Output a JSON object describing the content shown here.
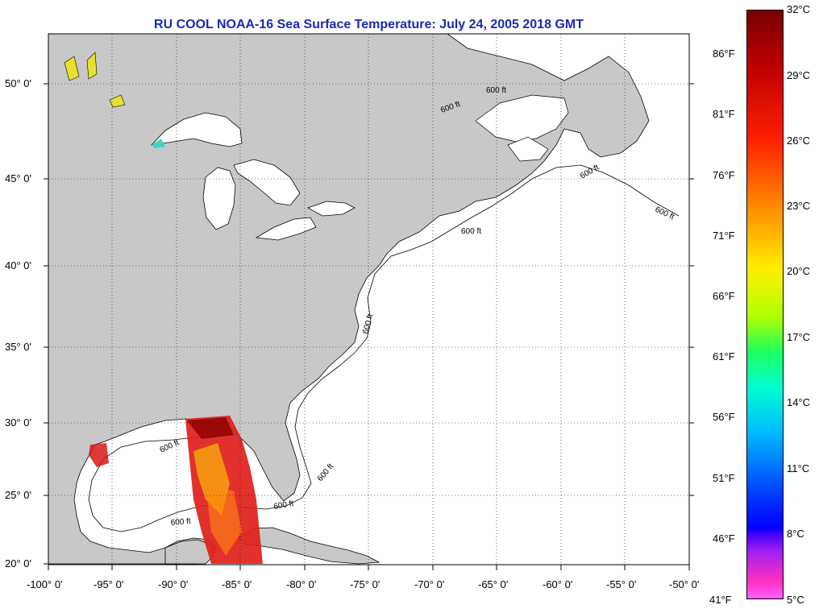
{
  "title": "RU COOL  NOAA-16  Sea Surface Temperature:  July 24, 2005 2018 GMT",
  "map": {
    "lat_labels": [
      "50° 0'",
      "45° 0'",
      "40° 0'",
      "35° 0'",
      "30° 0'",
      "25° 0'",
      "20° 0'"
    ],
    "lon_labels": [
      "-100° 0'",
      "-95° 0'",
      "-90° 0'",
      "-85° 0'",
      "-80° 0'",
      "-75° 0'",
      "-70° 0'",
      "-65° 0'",
      "-60° 0'",
      "-55° 0'",
      "-50° 0'"
    ],
    "contour_label": "600 ft",
    "land_color": "#c8c8c8"
  },
  "colorbar": {
    "celsius": [
      "32°C",
      "29°C",
      "26°C",
      "23°C",
      "20°C",
      "17°C",
      "14°C",
      "11°C",
      "8°C",
      "5°C"
    ],
    "fahrenheit": [
      "86°F",
      "81°F",
      "76°F",
      "71°F",
      "66°F",
      "61°F",
      "56°F",
      "51°F",
      "46°F",
      "41°F"
    ]
  }
}
